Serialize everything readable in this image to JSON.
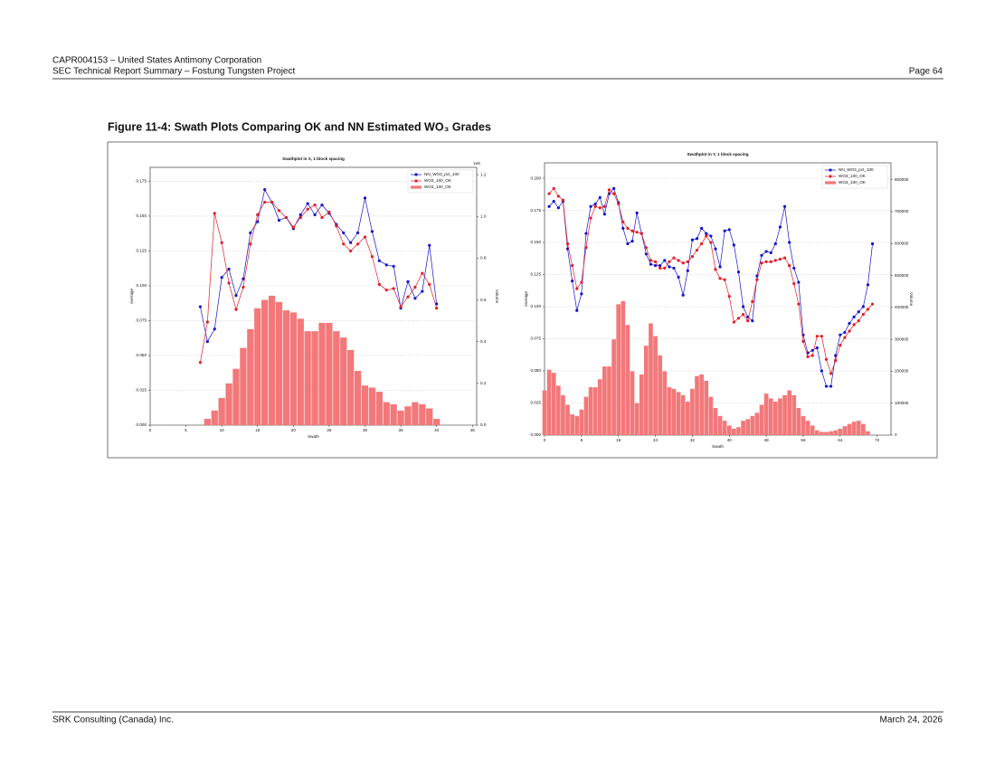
{
  "header": {
    "line1": "CAPR004153 – United States Antimony Corporation",
    "line2": "SEC Technical Report Summary – Fostung Tungsten Project",
    "page": "Page 64"
  },
  "figure_title": "Figure 11-4: Swath Plots Comparing OK and NN Estimated WO₃ Grades",
  "footer": {
    "left": "SRK Consulting (Canada) Inc.",
    "right": "March 24, 2026"
  },
  "chart_data": [
    {
      "type": "swath",
      "title": "Swathplot in X, 1 block spacing",
      "x_label": "Swath",
      "y_label": "Average",
      "y2_label": "Volume",
      "y2_offset_label": "1e6",
      "xlim": [
        0,
        45.6
      ],
      "xticks": [
        0,
        5,
        10,
        15,
        20,
        25,
        30,
        35,
        40,
        45
      ],
      "ylim": [
        0,
        0.185
      ],
      "yticks": [
        {
          "value": 0,
          "label": "0.000"
        },
        0.025,
        {
          "value": 0.05,
          "label": "0.050"
        },
        0.075,
        {
          "value": 0.1,
          "label": "0.100"
        },
        0.125,
        {
          "value": 0.15,
          "label": "0.150"
        },
        0.175
      ],
      "y2lim": [
        0,
        1.235
      ],
      "y2ticks": [
        {
          "value": 0,
          "label": "0.0"
        },
        0.2,
        0.4,
        0.6,
        0.8,
        {
          "value": 1,
          "label": "1.0"
        },
        1.2
      ],
      "grid": true,
      "legend": "upper right",
      "series": [
        {
          "name": "NN_WO3_pct_100",
          "kind": "line",
          "color": "#1414c8",
          "x": [
            7,
            8,
            9,
            10,
            11,
            12,
            13,
            14,
            15,
            16,
            17,
            18,
            19,
            20,
            21,
            22,
            23,
            24,
            25,
            26,
            27,
            28,
            29,
            30,
            31,
            32,
            33,
            34,
            35,
            36,
            37,
            38,
            39,
            40
          ],
          "values": [
            0.085,
            0.06,
            0.069,
            0.106,
            0.112,
            0.093,
            0.105,
            0.138,
            0.146,
            0.169,
            0.16,
            0.147,
            0.149,
            0.141,
            0.151,
            0.159,
            0.151,
            0.158,
            0.152,
            0.144,
            0.138,
            0.131,
            0.138,
            0.163,
            0.139,
            0.118,
            0.115,
            0.114,
            0.084,
            0.103,
            0.091,
            0.096,
            0.129,
            0.087
          ]
        },
        {
          "name": "WO3_100_OK",
          "kind": "line",
          "color": "#e01e26",
          "x": [
            7,
            8,
            9,
            10,
            11,
            12,
            13,
            14,
            15,
            16,
            17,
            18,
            19,
            20,
            21,
            22,
            23,
            24,
            25,
            26,
            27,
            28,
            29,
            30,
            31,
            32,
            33,
            34,
            35,
            36,
            37,
            38,
            39,
            40
          ],
          "values": [
            0.045,
            0.074,
            0.152,
            0.131,
            0.102,
            0.083,
            0.099,
            0.13,
            0.151,
            0.16,
            0.16,
            0.154,
            0.149,
            0.142,
            0.149,
            0.155,
            0.158,
            0.149,
            0.153,
            0.143,
            0.13,
            0.125,
            0.13,
            0.135,
            0.121,
            0.101,
            0.097,
            0.098,
            0.085,
            0.092,
            0.099,
            0.109,
            0.101,
            0.084
          ]
        },
        {
          "name": "WO3_100_OK",
          "kind": "bar",
          "axis": "y2",
          "color": "#f2787a",
          "x": [
            8,
            9,
            10,
            11,
            12,
            13,
            14,
            15,
            16,
            17,
            18,
            19,
            20,
            21,
            22,
            23,
            24,
            25,
            26,
            27,
            28,
            29,
            30,
            31,
            32,
            33,
            34,
            35,
            36,
            37,
            38,
            39,
            40
          ],
          "values": [
            0.03,
            0.07,
            0.13,
            0.2,
            0.27,
            0.37,
            0.46,
            0.56,
            0.6,
            0.62,
            0.59,
            0.55,
            0.54,
            0.51,
            0.45,
            0.45,
            0.49,
            0.49,
            0.45,
            0.42,
            0.36,
            0.26,
            0.19,
            0.18,
            0.16,
            0.11,
            0.1,
            0.07,
            0.09,
            0.11,
            0.1,
            0.08,
            0.03
          ]
        }
      ]
    },
    {
      "type": "swath",
      "title": "Swathplot in Y, 1 block spacing",
      "x_label": "Swath",
      "y_label": "Average",
      "y2_label": "Volume",
      "xlim": [
        0,
        75
      ],
      "xticks": [
        0,
        8,
        16,
        24,
        32,
        40,
        48,
        56,
        64,
        72
      ],
      "ylim": [
        0,
        0.212
      ],
      "yticks": [
        {
          "value": 0,
          "label": "0.000"
        },
        0.025,
        {
          "value": 0.05,
          "label": "0.050"
        },
        0.075,
        {
          "value": 0.1,
          "label": "0.100"
        },
        0.125,
        {
          "value": 0.15,
          "label": "0.150"
        },
        0.175,
        {
          "value": 0.2,
          "label": "0.200"
        }
      ],
      "y2lim": [
        0,
        853000
      ],
      "y2ticks": [
        0,
        100000,
        200000,
        300000,
        400000,
        500000,
        600000,
        700000,
        800000
      ],
      "grid": true,
      "legend": "upper right",
      "series": [
        {
          "name": "NN_WO3_pct_100",
          "kind": "line",
          "color": "#1414c8",
          "x": [
            1,
            2,
            3,
            4,
            5,
            6,
            7,
            8,
            9,
            10,
            11,
            12,
            13,
            14,
            15,
            16,
            17,
            18,
            19,
            20,
            21,
            22,
            23,
            24,
            25,
            26,
            27,
            28,
            29,
            30,
            31,
            32,
            33,
            34,
            35,
            36,
            37,
            38,
            39,
            40,
            41,
            42,
            43,
            44,
            45,
            46,
            47,
            48,
            49,
            50,
            51,
            52,
            53,
            54,
            55,
            56,
            57,
            58,
            59,
            60,
            61,
            62,
            63,
            64,
            65,
            66,
            67,
            68,
            69,
            70,
            71
          ],
          "values": [
            0.178,
            0.182,
            0.177,
            0.182,
            0.145,
            0.12,
            0.097,
            0.11,
            0.157,
            0.178,
            0.18,
            0.185,
            0.172,
            0.188,
            0.192,
            0.181,
            0.161,
            0.149,
            0.151,
            0.173,
            0.157,
            0.141,
            0.133,
            0.132,
            0.132,
            0.136,
            0.131,
            0.13,
            0.123,
            0.109,
            0.128,
            0.152,
            0.153,
            0.161,
            0.157,
            0.155,
            0.145,
            0.131,
            0.159,
            0.16,
            0.148,
            0.127,
            0.1,
            0.092,
            0.089,
            0.124,
            0.14,
            0.143,
            0.142,
            0.149,
            0.162,
            0.178,
            0.15,
            0.13,
            0.119,
            0.078,
            0.064,
            0.066,
            0.068,
            0.05,
            0.038,
            0.038,
            0.062,
            0.078,
            0.08,
            0.087,
            0.092,
            0.096,
            0.1,
            0.117,
            0.149
          ]
        },
        {
          "name": "WO3_100_OK",
          "kind": "line",
          "color": "#e01e26",
          "x": [
            1,
            2,
            3,
            4,
            5,
            6,
            7,
            8,
            9,
            10,
            11,
            12,
            13,
            14,
            15,
            16,
            17,
            18,
            19,
            20,
            21,
            22,
            23,
            24,
            25,
            26,
            27,
            28,
            29,
            30,
            31,
            32,
            33,
            34,
            35,
            36,
            37,
            38,
            39,
            40,
            41,
            42,
            43,
            44,
            45,
            46,
            47,
            48,
            49,
            50,
            51,
            52,
            53,
            54,
            55,
            56,
            57,
            58,
            59,
            60,
            61,
            62,
            63,
            64,
            65,
            66,
            67,
            68,
            69,
            70,
            71
          ],
          "values": [
            0.188,
            0.192,
            0.186,
            0.183,
            0.149,
            0.132,
            0.114,
            0.119,
            0.146,
            0.169,
            0.178,
            0.177,
            0.178,
            0.191,
            0.188,
            0.18,
            0.166,
            0.161,
            0.159,
            0.158,
            0.157,
            0.146,
            0.136,
            0.135,
            0.13,
            0.13,
            0.135,
            0.138,
            0.136,
            0.134,
            0.135,
            0.139,
            0.144,
            0.149,
            0.155,
            0.15,
            0.129,
            0.122,
            0.121,
            0.108,
            0.088,
            0.091,
            0.094,
            0.089,
            0.104,
            0.121,
            0.134,
            0.135,
            0.135,
            0.136,
            0.137,
            0.138,
            0.132,
            0.118,
            0.102,
            0.073,
            0.061,
            0.062,
            0.077,
            0.077,
            0.059,
            0.048,
            0.058,
            0.07,
            0.076,
            0.081,
            0.086,
            0.089,
            0.094,
            0.098,
            0.102
          ]
        },
        {
          "name": "WO3_100_OK",
          "kind": "bar",
          "axis": "y2",
          "color": "#f2787a",
          "x": [
            0,
            1,
            2,
            3,
            4,
            5,
            6,
            7,
            8,
            9,
            10,
            11,
            12,
            13,
            14,
            15,
            16,
            17,
            18,
            19,
            20,
            21,
            22,
            23,
            24,
            25,
            26,
            27,
            28,
            29,
            30,
            31,
            32,
            33,
            34,
            35,
            36,
            37,
            38,
            39,
            40,
            41,
            42,
            43,
            44,
            45,
            46,
            47,
            48,
            49,
            50,
            51,
            52,
            53,
            54,
            55,
            56,
            57,
            58,
            59,
            60,
            61,
            62,
            63,
            64,
            65,
            66,
            67,
            68,
            69,
            70
          ],
          "values": [
            140000,
            205000,
            195000,
            155000,
            125000,
            95000,
            65000,
            60000,
            80000,
            120000,
            150000,
            150000,
            175000,
            215000,
            215000,
            300000,
            410000,
            420000,
            345000,
            200000,
            100000,
            190000,
            280000,
            350000,
            310000,
            250000,
            200000,
            150000,
            145000,
            135000,
            125000,
            105000,
            145000,
            185000,
            190000,
            170000,
            120000,
            85000,
            60000,
            45000,
            30000,
            20000,
            25000,
            45000,
            50000,
            60000,
            70000,
            95000,
            130000,
            115000,
            105000,
            115000,
            125000,
            140000,
            125000,
            85000,
            60000,
            45000,
            30000,
            15000,
            10000,
            10000,
            12000,
            15000,
            20000,
            28000,
            35000,
            42000,
            45000,
            35000,
            12000
          ]
        }
      ]
    }
  ]
}
